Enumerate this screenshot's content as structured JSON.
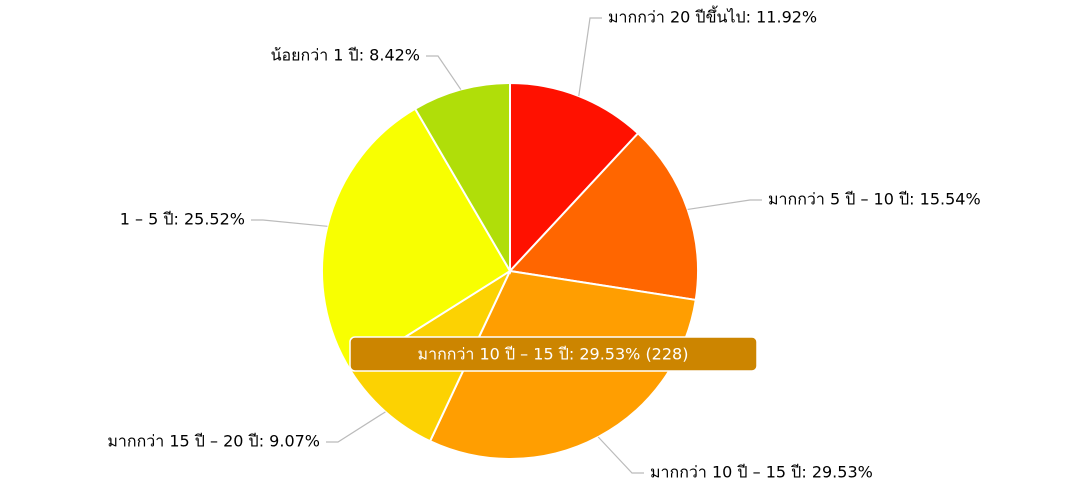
{
  "chart_data": {
    "type": "pie",
    "values": [
      11.92,
      15.54,
      29.53,
      9.07,
      25.52,
      8.42
    ],
    "value_labels": [
      "มากกว่า 20 ปีขึ้นไป: 11.92%",
      "มากกว่า 5 ปี – 10 ปี: 15.54%",
      "มากกว่า 10 ปี – 15 ปี: 29.53%",
      "มากกว่า 15 ปี – 20 ปี: 9.07%",
      "1 – 5 ปี: 25.52%",
      "น้อยกว่า 1 ปี: 8.42%"
    ],
    "colors": [
      "#ff1100",
      "#ff6600",
      "#ff9e01",
      "#fcd202",
      "#f8ff01",
      "#b0de09"
    ],
    "tooltip": "มากกว่า 10 ปี – 15 ปี: 29.53% (228)"
  }
}
